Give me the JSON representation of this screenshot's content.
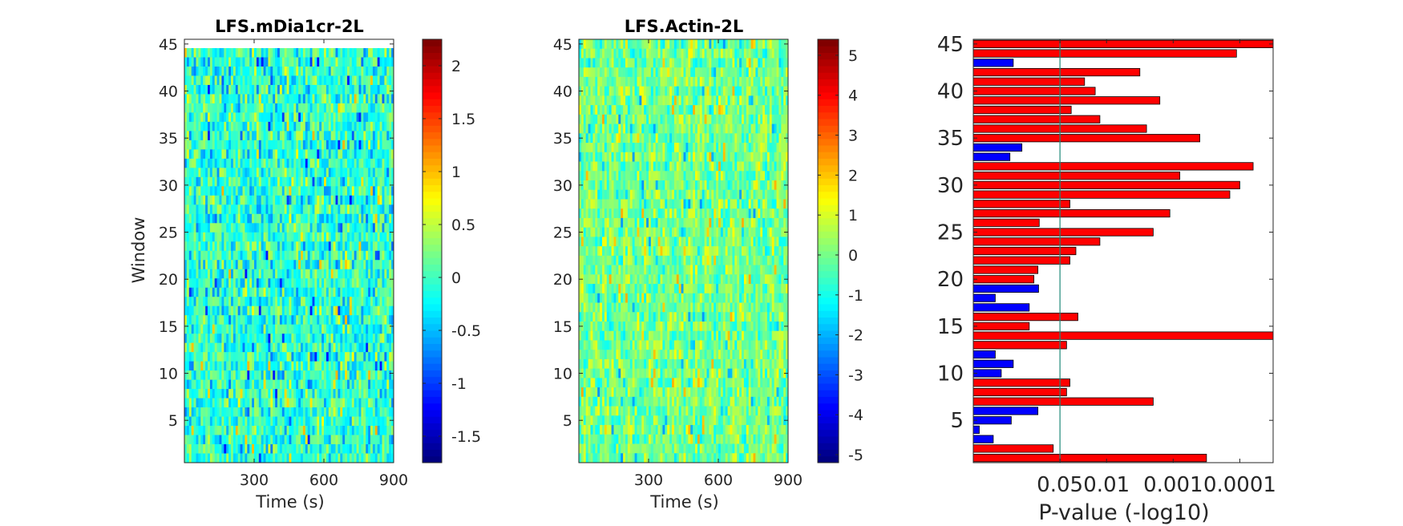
{
  "chart_data": [
    {
      "type": "heatmap",
      "title": "LFS.mDia1cr-2L",
      "xlabel": "Time (s)",
      "ylabel": "Window",
      "xlim": [
        0,
        900
      ],
      "ylim": [
        0.5,
        45.5
      ],
      "xticks": [
        "300",
        "600",
        "900"
      ],
      "yticks": [
        "5",
        "10",
        "15",
        "20",
        "25",
        "30",
        "35",
        "40",
        "45"
      ],
      "colormap": "jet",
      "clim": [
        -1.75,
        2.25
      ],
      "colorbar_ticks": [
        "-1.5",
        "-1",
        "-0.5",
        "0",
        "0.5",
        "1",
        "1.5",
        "2"
      ]
    },
    {
      "type": "heatmap",
      "title": "LFS.Actin-2L",
      "xlabel": "Time (s)",
      "ylabel": "",
      "xlim": [
        0,
        900
      ],
      "ylim": [
        0.5,
        45.5
      ],
      "xticks": [
        "300",
        "600",
        "900"
      ],
      "yticks": [
        "5",
        "10",
        "15",
        "20",
        "25",
        "30",
        "35",
        "40",
        "45"
      ],
      "colormap": "jet",
      "clim": [
        -5.2,
        5.4
      ],
      "colorbar_ticks": [
        "-5",
        "-4",
        "-3",
        "-2",
        "-1",
        "0",
        "1",
        "2",
        "3",
        "4",
        "5"
      ]
    },
    {
      "type": "bar",
      "orientation": "horizontal",
      "xlabel": "P-value (-log10)",
      "ylabel": "",
      "xticks": [
        "0.05",
        "0.01",
        "0.001",
        "0.0001"
      ],
      "yticks": [
        "5",
        "10",
        "15",
        "20",
        "25",
        "30",
        "35",
        "40",
        "45"
      ],
      "reference_line": "0.05",
      "colors": {
        "significant": "#ff0000",
        "not_significant": "#0000ff"
      },
      "windows": [
        1,
        2,
        3,
        4,
        5,
        6,
        7,
        8,
        9,
        10,
        11,
        12,
        13,
        14,
        15,
        16,
        17,
        18,
        19,
        20,
        21,
        22,
        23,
        24,
        25,
        26,
        27,
        28,
        29,
        30,
        31,
        32,
        33,
        34,
        35,
        36,
        37,
        38,
        39,
        40,
        41,
        42,
        43,
        44,
        45
      ],
      "values": [
        3.5,
        1.2,
        0.3,
        0.09,
        0.57,
        0.97,
        2.7,
        1.4,
        1.45,
        0.42,
        0.6,
        0.33,
        1.4,
        4.5,
        0.84,
        1.57,
        0.84,
        0.33,
        0.98,
        0.91,
        0.97,
        1.45,
        1.54,
        1.9,
        2.7,
        0.99,
        2.95,
        1.45,
        3.85,
        4.0,
        3.1,
        4.2,
        0.55,
        0.73,
        3.4,
        2.6,
        1.9,
        1.47,
        2.8,
        1.83,
        1.67,
        2.5,
        0.6,
        3.95,
        4.5
      ],
      "significant": [
        true,
        true,
        false,
        false,
        false,
        false,
        true,
        true,
        true,
        false,
        false,
        false,
        true,
        true,
        true,
        true,
        false,
        false,
        false,
        true,
        true,
        true,
        true,
        true,
        true,
        true,
        true,
        true,
        true,
        true,
        true,
        true,
        false,
        false,
        true,
        true,
        true,
        true,
        true,
        true,
        true,
        true,
        false,
        true,
        true
      ]
    }
  ]
}
